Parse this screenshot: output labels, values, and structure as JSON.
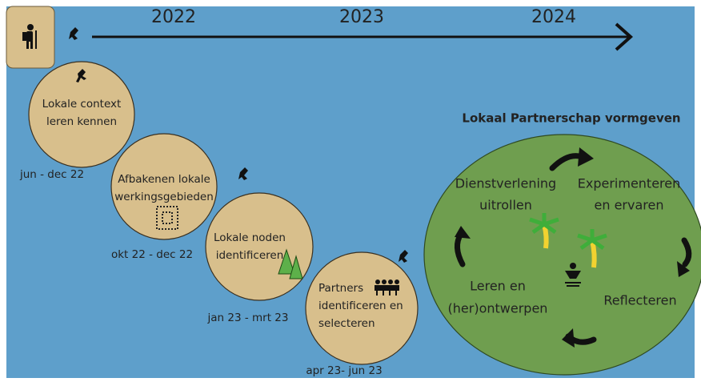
{
  "timeline": {
    "years": [
      "2022",
      "2023",
      "2024"
    ]
  },
  "phases": [
    {
      "label": [
        "Lokale context",
        "leren kennen"
      ],
      "period": "jun - dec 22"
    },
    {
      "label": [
        "Afbakenen lokale",
        "werkingsgebieden"
      ],
      "period": "okt 22 - dec 22"
    },
    {
      "label": [
        "Lokale noden",
        "identificeren"
      ],
      "period": "jan 23 - mrt 23"
    },
    {
      "label": [
        "Partners",
        "identificeren en",
        "selecteren"
      ],
      "period": "apr 23- jun 23"
    }
  ],
  "partnership": {
    "title": "Lokaal Partnerschap vormgeven",
    "steps": [
      [
        "Dienstverlening",
        "uitrollen"
      ],
      [
        "Experimenteren",
        "en ervaren"
      ],
      [
        "Reflecteren"
      ],
      [
        "Leren en",
        "(her)ontwerpen"
      ]
    ]
  }
}
